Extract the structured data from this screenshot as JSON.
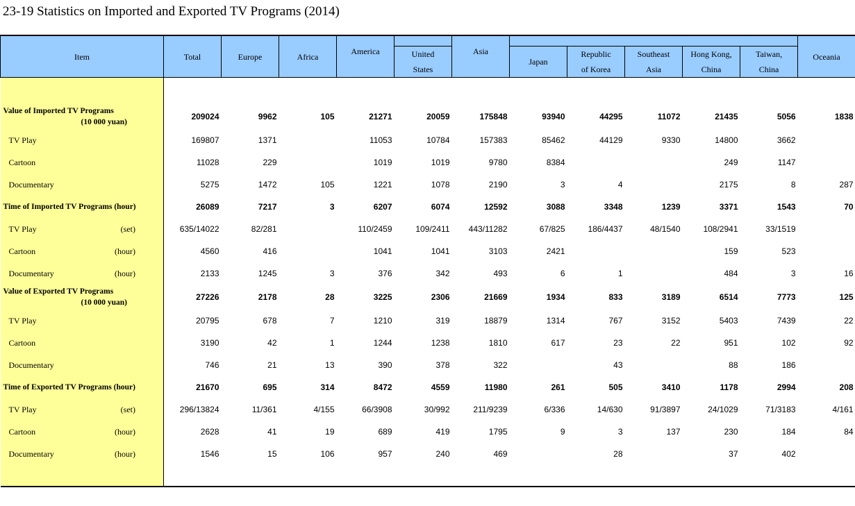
{
  "title": "23-19  Statistics on Imported and Exported TV Programs (2014)",
  "headers": {
    "item": "Item",
    "total": "Total",
    "europe": "Europe",
    "africa": "Africa",
    "america": "America",
    "united_states": [
      "United",
      "States"
    ],
    "asia": "Asia",
    "japan": "Japan",
    "korea": [
      "Republic",
      "of Korea"
    ],
    "southeast_asia": [
      "Southeast",
      "Asia"
    ],
    "hong_kong": [
      "Hong Kong,",
      "China"
    ],
    "taiwan": [
      "Taiwan,",
      "China"
    ],
    "oceania": "Oceania"
  },
  "rows": [
    {
      "label": "Value of Imported TV Programs",
      "label2": "(10 000 yuan)",
      "unit": "",
      "bold": true,
      "values": [
        "209024",
        "9962",
        "105",
        "21271",
        "20059",
        "175848",
        "93940",
        "44295",
        "11072",
        "21435",
        "5056",
        "1838"
      ]
    },
    {
      "label": "TV Play",
      "unit": "",
      "bold": false,
      "values": [
        "169807",
        "1371",
        "",
        "11053",
        "10784",
        "157383",
        "85462",
        "44129",
        "9330",
        "14800",
        "3662",
        ""
      ]
    },
    {
      "label": "Cartoon",
      "unit": "",
      "bold": false,
      "values": [
        "11028",
        "229",
        "",
        "1019",
        "1019",
        "9780",
        "8384",
        "",
        "",
        "249",
        "1147",
        ""
      ]
    },
    {
      "label": "Documentary",
      "unit": "",
      "bold": false,
      "values": [
        "5275",
        "1472",
        "105",
        "1221",
        "1078",
        "2190",
        "3",
        "4",
        "",
        "2175",
        "8",
        "287"
      ]
    },
    {
      "label": "Time of Imported TV Programs (hour)",
      "unit": "",
      "bold": true,
      "values": [
        "26089",
        "7217",
        "3",
        "6207",
        "6074",
        "12592",
        "3088",
        "3348",
        "1239",
        "3371",
        "1543",
        "70"
      ]
    },
    {
      "label": "TV Play",
      "unit": "(set)",
      "bold": false,
      "values": [
        "635/14022",
        "82/281",
        "",
        "110/2459",
        "109/2411",
        "443/11282",
        "67/825",
        "186/4437",
        "48/1540",
        "108/2941",
        "33/1519",
        ""
      ]
    },
    {
      "label": "Cartoon",
      "unit": "(hour)",
      "bold": false,
      "values": [
        "4560",
        "416",
        "",
        "1041",
        "1041",
        "3103",
        "2421",
        "",
        "",
        "159",
        "523",
        ""
      ]
    },
    {
      "label": "Documentary",
      "unit": "(hour)",
      "bold": false,
      "values": [
        "2133",
        "1245",
        "3",
        "376",
        "342",
        "493",
        "6",
        "1",
        "",
        "484",
        "3",
        "16"
      ]
    },
    {
      "label": "Value of Exported TV Programs",
      "label2": "(10 000 yuan)",
      "unit": "",
      "bold": true,
      "values": [
        "27226",
        "2178",
        "28",
        "3225",
        "2306",
        "21669",
        "1934",
        "833",
        "3189",
        "6514",
        "7773",
        "125"
      ]
    },
    {
      "label": "TV Play",
      "unit": "",
      "bold": false,
      "values": [
        "20795",
        "678",
        "7",
        "1210",
        "319",
        "18879",
        "1314",
        "767",
        "3152",
        "5403",
        "7439",
        "22"
      ]
    },
    {
      "label": "Cartoon",
      "unit": "",
      "bold": false,
      "values": [
        "3190",
        "42",
        "1",
        "1244",
        "1238",
        "1810",
        "617",
        "23",
        "22",
        "951",
        "102",
        "92"
      ]
    },
    {
      "label": "Documentary",
      "unit": "",
      "bold": false,
      "values": [
        "746",
        "21",
        "13",
        "390",
        "378",
        "322",
        "",
        "43",
        "",
        "88",
        "186",
        ""
      ]
    },
    {
      "label": "Time of Exported TV Programs (hour)",
      "unit": "",
      "bold": true,
      "values": [
        "21670",
        "695",
        "314",
        "8472",
        "4559",
        "11980",
        "261",
        "505",
        "3410",
        "1178",
        "2994",
        "208"
      ]
    },
    {
      "label": "TV Play",
      "unit": "(set)",
      "bold": false,
      "values": [
        "296/13824",
        "11/361",
        "4/155",
        "66/3908",
        "30/992",
        "211/9239",
        "6/336",
        "14/630",
        "91/3897",
        "24/1029",
        "71/3183",
        "4/161"
      ]
    },
    {
      "label": "Cartoon",
      "unit": "(hour)",
      "bold": false,
      "values": [
        "2628",
        "41",
        "19",
        "689",
        "419",
        "1795",
        "9",
        "3",
        "137",
        "230",
        "184",
        "84"
      ]
    },
    {
      "label": "Documentary",
      "unit": "(hour)",
      "bold": false,
      "values": [
        "1546",
        "15",
        "106",
        "957",
        "240",
        "469",
        "",
        "28",
        "",
        "37",
        "402",
        ""
      ]
    }
  ]
}
